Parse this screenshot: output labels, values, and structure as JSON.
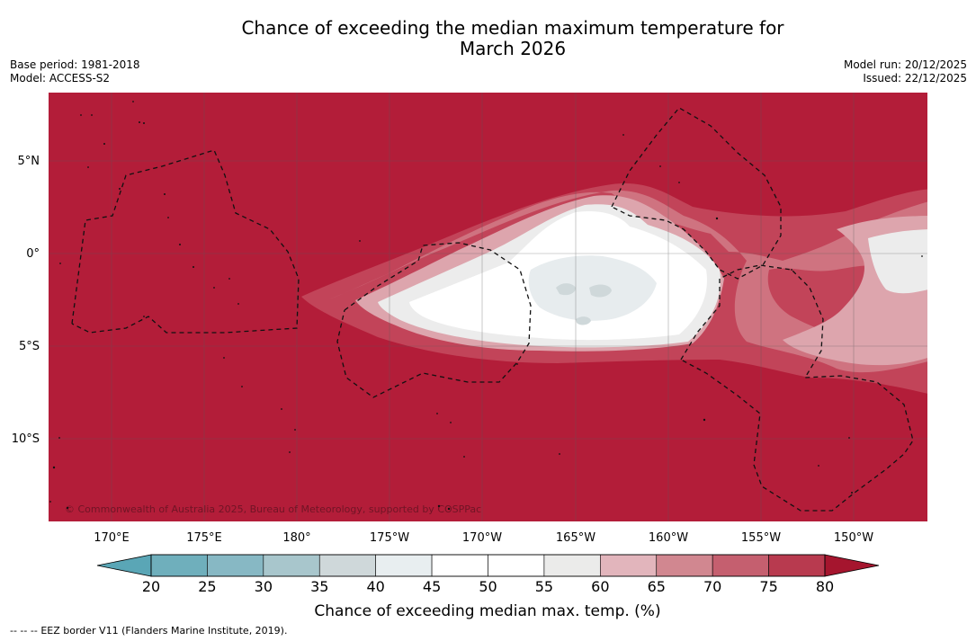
{
  "header": {
    "title_line1": "Chance of exceeding the median maximum temperature for",
    "title_line2": "March 2026",
    "base_period": "Base period: 1981-2018",
    "model": "Model: ACCESS-S2",
    "model_run": "Model run: 20/12/2025",
    "issued": "Issued: 22/12/2025"
  },
  "map": {
    "copyright": "© Commonwealth of Australia 2025, Bureau of Meteorology, supported by COSPPac",
    "lat_ticks": [
      "5°N",
      "0°",
      "5°S",
      "10°S"
    ],
    "lon_ticks": [
      "170°E",
      "175°E",
      "180°",
      "175°W",
      "170°W",
      "165°W",
      "160°W",
      "155°W",
      "150°W"
    ]
  },
  "colorbar": {
    "levels": [
      "20",
      "25",
      "30",
      "35",
      "40",
      "45",
      "50",
      "55",
      "60",
      "65",
      "70",
      "75",
      "80"
    ],
    "colors": [
      "#68aebd",
      "#6fafbc",
      "#87b8c4",
      "#a8c6cc",
      "#cfd8da",
      "#e8eef0",
      "#ffffff",
      "#ffffff",
      "#ebebea",
      "#e2b5bc",
      "#d18790",
      "#c55f6f",
      "#b83a4f"
    ],
    "low_color": "#5aa6b6",
    "high_color": "#a5152e",
    "title": "Chance of exceeding median max. temp. (%)"
  },
  "footer": {
    "legend_symbol": "--  --  --",
    "legend_text": "EEZ border V11 (Flanders Marine Institute, 2019)."
  },
  "colors": {
    "base_red": "#b31d39",
    "ring_75": "#c24459",
    "ring_70": "#cf7380",
    "ring_65": "#dda5ad",
    "ring_60": "#ececec",
    "white": "#ffffff",
    "ring_45": "#e7ecee",
    "ring_40": "#cfd8da"
  }
}
